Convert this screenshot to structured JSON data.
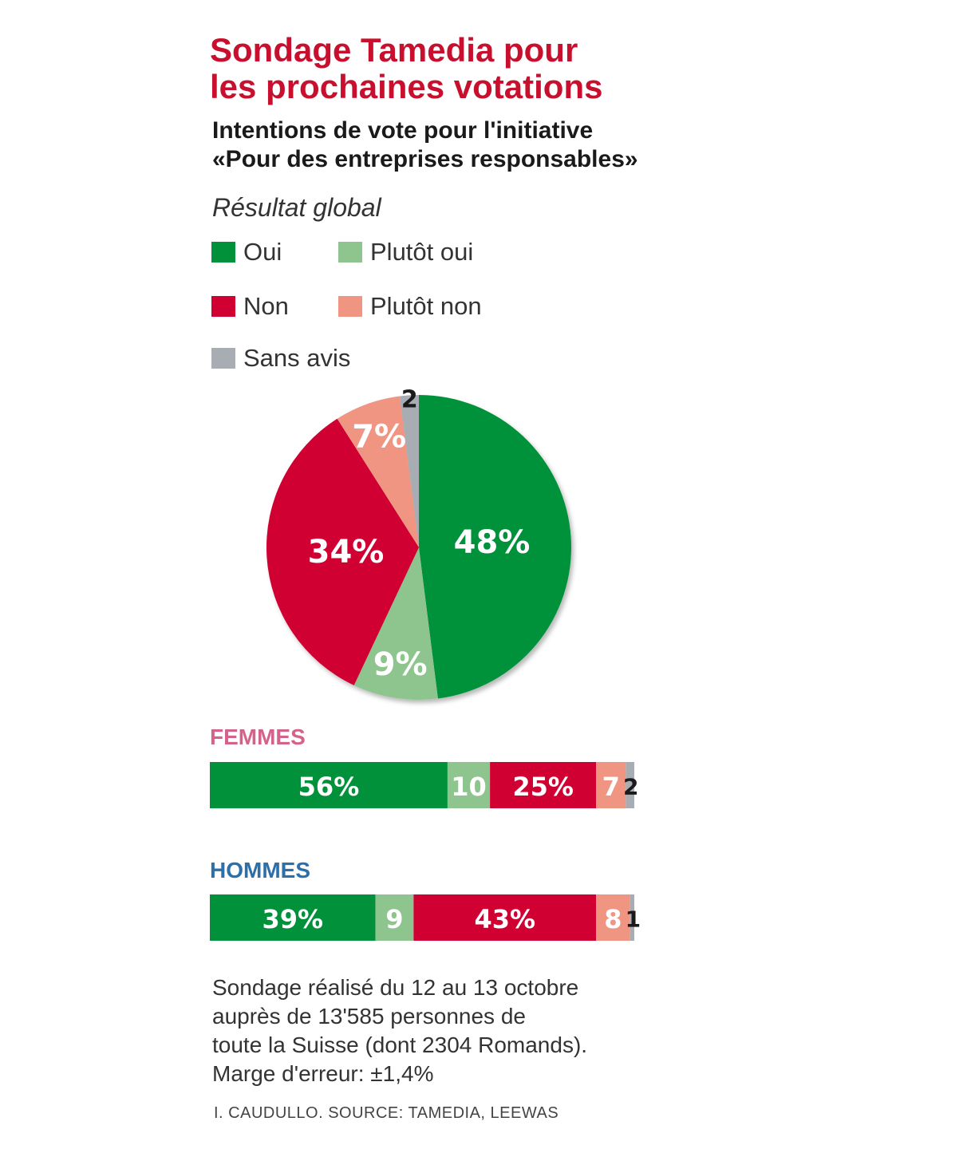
{
  "title_lines": [
    "Sondage Tamedia pour",
    "les prochaines votations"
  ],
  "subtitle_lines": [
    "Intentions de vote pour l'initiative",
    "«Pour des entreprises responsables»"
  ],
  "section_label": "Résultat global",
  "colors": {
    "oui": "#00913a",
    "plutot_oui": "#8ec48e",
    "non": "#d10032",
    "plutot_non": "#ef9582",
    "sans_avis": "#a7adb3",
    "title": "#c8102e",
    "femmes_label": "#d4628a",
    "hommes_label": "#2d6fa8"
  },
  "legend": [
    {
      "label": "Oui",
      "color": "#00913a"
    },
    {
      "label": "Plutôt oui",
      "color": "#8ec48e"
    },
    {
      "label": "Non",
      "color": "#d10032"
    },
    {
      "label": "Plutôt non",
      "color": "#ef9582"
    },
    {
      "label": "Sans avis",
      "color": "#a7adb3"
    }
  ],
  "chart_data": [
    {
      "type": "pie",
      "title": "Résultat global",
      "categories": [
        "Oui",
        "Plutôt oui",
        "Non",
        "Plutôt non",
        "Sans avis"
      ],
      "values": [
        48,
        9,
        34,
        7,
        2
      ],
      "labels": [
        "48%",
        "9%",
        "34%",
        "7%",
        "2"
      ],
      "start": "12 o'clock",
      "direction": "clockwise"
    },
    {
      "type": "bar",
      "orientation": "horizontal-stacked",
      "title": "FEMMES",
      "categories": [
        "Oui",
        "Plutôt oui",
        "Non",
        "Plutôt non",
        "Sans avis"
      ],
      "values": [
        56,
        10,
        25,
        7,
        2
      ],
      "labels": [
        "56%",
        "10",
        "25%",
        "7",
        "2"
      ]
    },
    {
      "type": "bar",
      "orientation": "horizontal-stacked",
      "title": "HOMMES",
      "categories": [
        "Oui",
        "Plutôt oui",
        "Non",
        "Plutôt non",
        "Sans avis"
      ],
      "values": [
        39,
        9,
        43,
        8,
        1
      ],
      "labels": [
        "39%",
        "9",
        "43%",
        "8",
        "1"
      ]
    }
  ],
  "footnote_lines": [
    "Sondage réalisé du 12 au 13 octobre",
    "auprès de 13'585 personnes de",
    "toute la Suisse (dont 2304 Romands).",
    "Marge d'erreur: ±1,4%"
  ],
  "credit": "I. CAUDULLO. SOURCE: TAMEDIA, LEEWAS"
}
